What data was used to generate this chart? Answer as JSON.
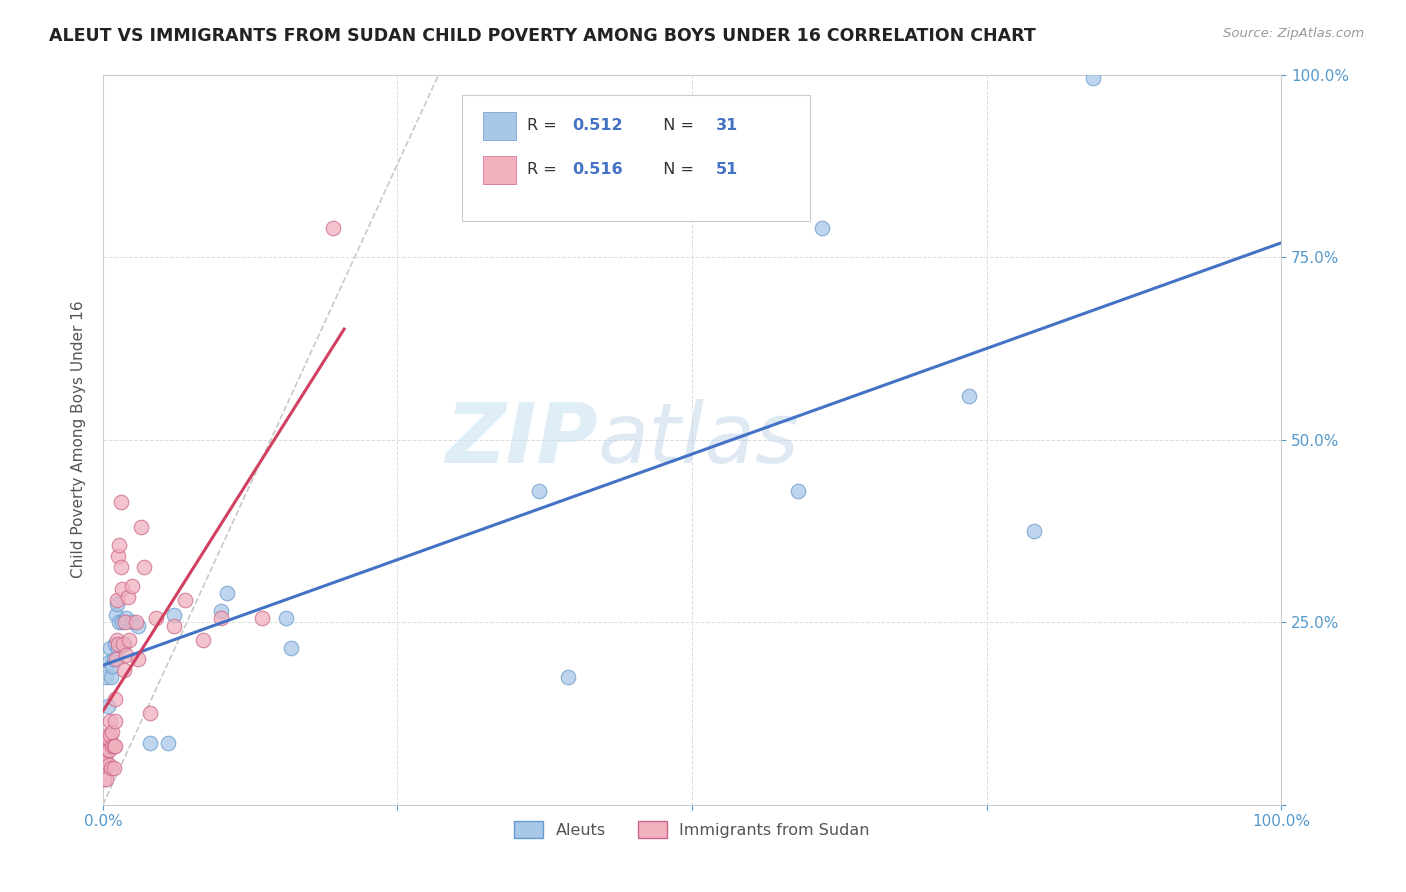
{
  "title": "ALEUT VS IMMIGRANTS FROM SUDAN CHILD POVERTY AMONG BOYS UNDER 16 CORRELATION CHART",
  "source": "Source: ZipAtlas.com",
  "ylabel": "Child Poverty Among Boys Under 16",
  "background_color": "#ffffff",
  "watermark_zip": "ZIP",
  "watermark_atlas": "atlas",
  "xlim": [
    0,
    1
  ],
  "ylim": [
    0,
    1
  ],
  "aleut_color": "#a8c8e8",
  "sudan_color": "#f0b0be",
  "aleut_line_color": "#4472c4",
  "sudan_line_color": "#d04060",
  "aleut_edge_color": "#6699cc",
  "sudan_edge_color": "#cc6688",
  "R_aleut": 0.512,
  "N_aleut": 31,
  "R_sudan": 0.516,
  "N_sudan": 51,
  "aleut_points_x": [
    0.003,
    0.004,
    0.005,
    0.006,
    0.007,
    0.008,
    0.009,
    0.01,
    0.011,
    0.012,
    0.013,
    0.014,
    0.016,
    0.018,
    0.02,
    0.025,
    0.03,
    0.04,
    0.055,
    0.06,
    0.1,
    0.105,
    0.155,
    0.16,
    0.37,
    0.395,
    0.59,
    0.61,
    0.735,
    0.79,
    0.84
  ],
  "aleut_points_y": [
    0.175,
    0.135,
    0.195,
    0.215,
    0.175,
    0.19,
    0.2,
    0.22,
    0.26,
    0.275,
    0.215,
    0.25,
    0.25,
    0.22,
    0.255,
    0.25,
    0.245,
    0.085,
    0.085,
    0.26,
    0.265,
    0.29,
    0.255,
    0.215,
    0.43,
    0.175,
    0.43,
    0.79,
    0.56,
    0.375,
    0.995
  ],
  "sudan_points_x": [
    0.001,
    0.001,
    0.001,
    0.002,
    0.002,
    0.002,
    0.003,
    0.003,
    0.004,
    0.004,
    0.005,
    0.005,
    0.005,
    0.006,
    0.006,
    0.007,
    0.008,
    0.008,
    0.009,
    0.009,
    0.01,
    0.01,
    0.01,
    0.011,
    0.012,
    0.012,
    0.013,
    0.013,
    0.014,
    0.015,
    0.015,
    0.016,
    0.017,
    0.018,
    0.019,
    0.02,
    0.021,
    0.022,
    0.025,
    0.028,
    0.03,
    0.032,
    0.035,
    0.04,
    0.045,
    0.06,
    0.07,
    0.085,
    0.1,
    0.135,
    0.195
  ],
  "sudan_points_y": [
    0.085,
    0.06,
    0.035,
    0.08,
    0.055,
    0.08,
    0.06,
    0.035,
    0.075,
    0.095,
    0.09,
    0.075,
    0.055,
    0.095,
    0.115,
    0.05,
    0.08,
    0.1,
    0.05,
    0.08,
    0.115,
    0.145,
    0.08,
    0.2,
    0.225,
    0.28,
    0.22,
    0.34,
    0.355,
    0.325,
    0.415,
    0.295,
    0.22,
    0.185,
    0.25,
    0.205,
    0.285,
    0.225,
    0.3,
    0.25,
    0.2,
    0.38,
    0.325,
    0.125,
    0.255,
    0.245,
    0.28,
    0.225,
    0.255,
    0.255,
    0.79
  ],
  "grid_color": "#dddddd",
  "tick_color": "#5599cc",
  "legend_label_color": "#555555",
  "title_color": "#222222",
  "source_color": "#999999",
  "ylabel_color": "#555555"
}
